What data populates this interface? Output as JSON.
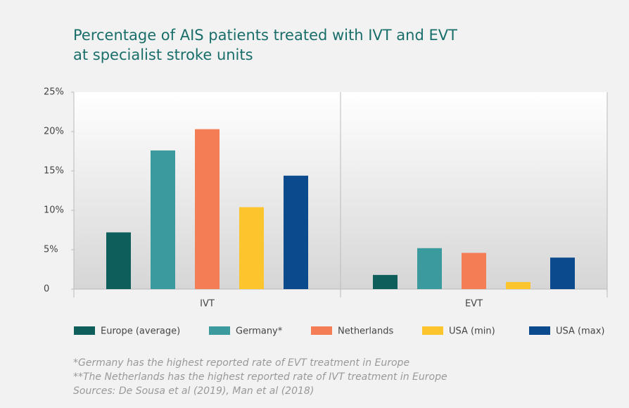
{
  "chart_data": {
    "type": "bar",
    "title": "Percentage of AIS patients treated with IVT and EVT at specialist stroke units",
    "categories": [
      "IVT",
      "EVT"
    ],
    "series": [
      {
        "name": "Europe (average)",
        "color": "#0e5e5b",
        "values": [
          7.2,
          1.8
        ]
      },
      {
        "name": "Germany*",
        "color": "#3a9a9e",
        "values": [
          17.6,
          5.2
        ]
      },
      {
        "name": "Netherlands",
        "color": "#f47d56",
        "values": [
          20.3,
          4.6
        ]
      },
      {
        "name": "USA (min)",
        "color": "#fdc52d",
        "values": [
          10.4,
          0.9
        ]
      },
      {
        "name": "USA (max)",
        "color": "#0b4a8c",
        "values": [
          14.4,
          4.0
        ]
      }
    ],
    "ylim": [
      0,
      25
    ],
    "yticks": [
      0,
      {
        "value": 5,
        "label": "5%"
      },
      {
        "value": 10,
        "label": "10%"
      },
      {
        "value": 15,
        "label": "15%"
      },
      {
        "value": 20,
        "label": "20%"
      },
      {
        "value": 25,
        "label": "25%"
      }
    ],
    "legend": "bottom",
    "notes": [
      "*Germany has the highest reported rate of EVT treatment in Europe",
      "**The Netherlands has the highest reported rate of IVT treatment in Europe",
      "Sources: De Sousa et al (2019), Man et al (2018)"
    ]
  }
}
